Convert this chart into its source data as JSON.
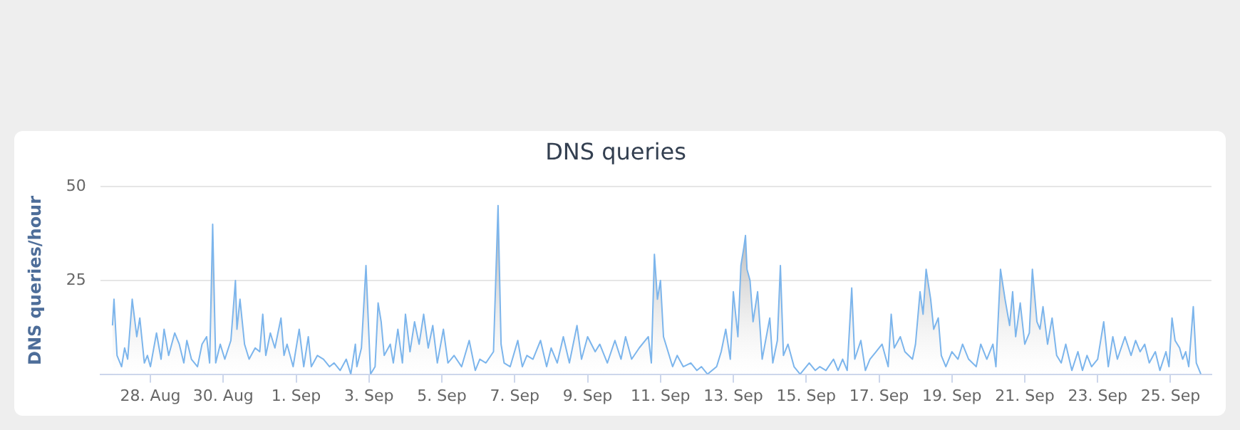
{
  "chart_data": {
    "type": "area",
    "title": "DNS queries",
    "ylabel": "DNS queries/hour",
    "xlim": [
      "--08-26T15:00",
      "--09-26T03:00"
    ],
    "xticks": [
      {
        "value": "--08-28",
        "label": "28. Aug"
      },
      {
        "value": "--08-30",
        "label": "30. Aug"
      },
      {
        "value": "--09-01",
        "label": "1. Sep"
      },
      {
        "value": "--09-03",
        "label": "3. Sep"
      },
      {
        "value": "--09-05",
        "label": "5. Sep"
      },
      {
        "value": "--09-07",
        "label": "7. Sep"
      },
      {
        "value": "--09-09",
        "label": "9. Sep"
      },
      {
        "value": "--09-11",
        "label": "11. Sep"
      },
      {
        "value": "--09-13",
        "label": "13. Sep"
      },
      {
        "value": "--09-15",
        "label": "15. Sep"
      },
      {
        "value": "--09-17",
        "label": "17. Sep"
      },
      {
        "value": "--09-19",
        "label": "19. Sep"
      },
      {
        "value": "--09-21",
        "label": "21. Sep"
      },
      {
        "value": "--09-23",
        "label": "23. Sep"
      },
      {
        "value": "--09-25",
        "label": "25. Sep"
      }
    ],
    "ylim": [
      0,
      50
    ],
    "yticks": [
      {
        "value": 0,
        "label": null
      },
      25,
      50
    ],
    "grid": "y",
    "series": [
      {
        "color": "#7cb5ec",
        "x": [
          "--08-26T23:00",
          "--08-27T00:00",
          "--08-27T02:00",
          "--08-27T05:00",
          "--08-27T07:00",
          "--08-27T09:00",
          "--08-27T12:00",
          "--08-27T15:00",
          "--08-27T17:00",
          "--08-27T20:00",
          "--08-27T22:00",
          "--08-28T00:00",
          "--08-28T04:00",
          "--08-28T07:00",
          "--08-28T09:00",
          "--08-28T12:00",
          "--08-28T16:00",
          "--08-28T19:00",
          "--08-28T22:00",
          "--08-29T00:00",
          "--08-29T03:00",
          "--08-29T07:00",
          "--08-29T10:00",
          "--08-29T13:00",
          "--08-29T15:00",
          "--08-29T17:00",
          "--08-29T19:00",
          "--08-29T22:00",
          "--08-30T01:00",
          "--08-30T05:00",
          "--08-30T08:00",
          "--08-30T09:00",
          "--08-30T11:00",
          "--08-30T14:00",
          "--08-30T17:00",
          "--08-30T21:00",
          "--08-31T00:00",
          "--08-31T02:00",
          "--08-31T04:00",
          "--08-31T07:00",
          "--08-31T10:00",
          "--08-31T14:00",
          "--08-31T16:00",
          "--08-31T18:00",
          "--08-31T22:00",
          "--09-01T02:00",
          "--09-01T05:00",
          "--09-01T08:00",
          "--09-01T10:00",
          "--09-01T14:00",
          "--09-01T18:00",
          "--09-01T22:00",
          "--09-02T01:00",
          "--09-02T05:00",
          "--09-02T09:00",
          "--09-02T12:00",
          "--09-02T15:00",
          "--09-02T16:00",
          "--09-02T19:00",
          "--09-02T22:00",
          "--09-03T01:00",
          "--09-03T04:00",
          "--09-03T06:00",
          "--09-03T08:00",
          "--09-03T10:00",
          "--09-03T14:00",
          "--09-03T16:00",
          "--09-03T19:00",
          "--09-03T22:00",
          "--09-04T00:00",
          "--09-04T03:00",
          "--09-04T06:00",
          "--09-04T09:00",
          "--09-04T12:00",
          "--09-04T15:00",
          "--09-04T18:00",
          "--09-04T21:00",
          "--09-05T01:00",
          "--09-05T04:00",
          "--09-05T08:00",
          "--09-05T13:00",
          "--09-05T18:00",
          "--09-05T22:00",
          "--09-06T01:00",
          "--09-06T05:00",
          "--09-06T10:00",
          "--09-06T13:00",
          "--09-06T15:00",
          "--09-06T17:00",
          "--09-06T21:00",
          "--09-07T02:00",
          "--09-07T05:00",
          "--09-07T08:00",
          "--09-07T12:00",
          "--09-07T17:00",
          "--09-07T21:00",
          "--09-08T00:00",
          "--09-08T04:00",
          "--09-08T08:00",
          "--09-08T12:00",
          "--09-08T17:00",
          "--09-08T20:00",
          "--09-09T00:00",
          "--09-09T05:00",
          "--09-09T08:00",
          "--09-09T13:00",
          "--09-09T18:00",
          "--09-09T22:00",
          "--09-10T01:00",
          "--09-10T05:00",
          "--09-10T10:00",
          "--09-10T16:00",
          "--09-10T18:00",
          "--09-10T20:00",
          "--09-10T22:00",
          "--09-11T00:00",
          "--09-11T02:00",
          "--09-11T05:00",
          "--09-11T08:00",
          "--09-11T11:00",
          "--09-11T15:00",
          "--09-11T20:00",
          "--09-12T00:00",
          "--09-12T03:00",
          "--09-12T07:00",
          "--09-12T13:00",
          "--09-12T16:00",
          "--09-12T19:00",
          "--09-12T22:00",
          "--09-13T00:00",
          "--09-13T03:00",
          "--09-13T05:00",
          "--09-13T07:00",
          "--09-13T08:00",
          "--09-13T09:00",
          "--09-13T11:00",
          "--09-13T13:00",
          "--09-13T16:00",
          "--09-13T19:00",
          "--09-14T00:00",
          "--09-14T02:00",
          "--09-14T05:00",
          "--09-14T07:00",
          "--09-14T09:00",
          "--09-14T12:00",
          "--09-14T16:00",
          "--09-14T20:00",
          "--09-15T02:00",
          "--09-15T06:00",
          "--09-15T09:00",
          "--09-15T13:00",
          "--09-15T18:00",
          "--09-15T21:00",
          "--09-16T00:00",
          "--09-16T03:00",
          "--09-16T06:00",
          "--09-16T08:00",
          "--09-16T12:00",
          "--09-16T15:00",
          "--09-16T18:00",
          "--09-16T22:00",
          "--09-17T02:00",
          "--09-17T06:00",
          "--09-17T08:00",
          "--09-17T10:00",
          "--09-17T14:00",
          "--09-17T17:00",
          "--09-17T22:00",
          "--09-18T00:00",
          "--09-18T03:00",
          "--09-18T05:00",
          "--09-18T07:00",
          "--09-18T10:00",
          "--09-18T12:00",
          "--09-18T15:00",
          "--09-18T17:00",
          "--09-18T20:00",
          "--09-19T00:00",
          "--09-19T04:00",
          "--09-19T07:00",
          "--09-19T11:00",
          "--09-19T16:00",
          "--09-19T19:00",
          "--09-19T23:00",
          "--09-20T03:00",
          "--09-20T05:00",
          "--09-20T08:00",
          "--09-20T11:00",
          "--09-20T14:00",
          "--09-20T16:00",
          "--09-20T18:00",
          "--09-20T21:00",
          "--09-21T00:00",
          "--09-21T03:00",
          "--09-21T05:00",
          "--09-21T08:00",
          "--09-21T10:00",
          "--09-21T12:00",
          "--09-21T15:00",
          "--09-21T18:00",
          "--09-21T21:00",
          "--09-22T00:00",
          "--09-22T03:00",
          "--09-22T07:00",
          "--09-22T11:00",
          "--09-22T14:00",
          "--09-22T17:00",
          "--09-22T20:00",
          "--09-23T00:00",
          "--09-23T04:00",
          "--09-23T07:00",
          "--09-23T10:00",
          "--09-23T13:00",
          "--09-23T18:00",
          "--09-23T22:00",
          "--09-24T01:00",
          "--09-24T04:00",
          "--09-24T07:00",
          "--09-24T10:00",
          "--09-24T14:00",
          "--09-24T17:00",
          "--09-24T21:00",
          "--09-24T23:00",
          "--09-25T01:00",
          "--09-25T03:00",
          "--09-25T06:00",
          "--09-25T08:00",
          "--09-25T10:00",
          "--09-25T12:00",
          "--09-25T15:00",
          "--09-25T17:00",
          "--09-25T20:00"
        ],
        "values": [
          13,
          20,
          5,
          2,
          7,
          4,
          20,
          10,
          15,
          3,
          5,
          2,
          11,
          4,
          12,
          5,
          11,
          8,
          3,
          9,
          4,
          2,
          8,
          10,
          3,
          40,
          3,
          8,
          4,
          9,
          25,
          12,
          20,
          8,
          4,
          7,
          6,
          16,
          5,
          11,
          7,
          15,
          5,
          8,
          2,
          12,
          2,
          10,
          2,
          5,
          4,
          2,
          3,
          1,
          4,
          0,
          8,
          2,
          7,
          29,
          0,
          2,
          19,
          14,
          5,
          8,
          3,
          12,
          3,
          16,
          6,
          14,
          8,
          16,
          7,
          13,
          3,
          12,
          3,
          5,
          2,
          9,
          1,
          4,
          3,
          6,
          45,
          8,
          3,
          2,
          9,
          2,
          5,
          4,
          9,
          2,
          7,
          3,
          10,
          3,
          13,
          4,
          10,
          6,
          8,
          3,
          9,
          4,
          10,
          4,
          7,
          10,
          3,
          32,
          20,
          25,
          10,
          6,
          2,
          5,
          2,
          3,
          1,
          2,
          0,
          2,
          6,
          12,
          4,
          22,
          10,
          29,
          34,
          37,
          28,
          25,
          14,
          22,
          4,
          15,
          3,
          9,
          29,
          5,
          8,
          2,
          0,
          3,
          1,
          2,
          1,
          4,
          1,
          4,
          1,
          23,
          4,
          9,
          1,
          4,
          6,
          8,
          2,
          16,
          7,
          10,
          6,
          4,
          8,
          22,
          16,
          28,
          20,
          12,
          15,
          5,
          2,
          6,
          4,
          8,
          4,
          2,
          8,
          4,
          8,
          2,
          28,
          20,
          13,
          22,
          10,
          19,
          8,
          11,
          28,
          14,
          12,
          18,
          8,
          15,
          5,
          3,
          8,
          1,
          6,
          1,
          5,
          2,
          4,
          14,
          2,
          10,
          4,
          10,
          5,
          9,
          6,
          8,
          3,
          6,
          1,
          6,
          2,
          15,
          9,
          7,
          4,
          6,
          2,
          18,
          3,
          0
        ]
      }
    ]
  }
}
